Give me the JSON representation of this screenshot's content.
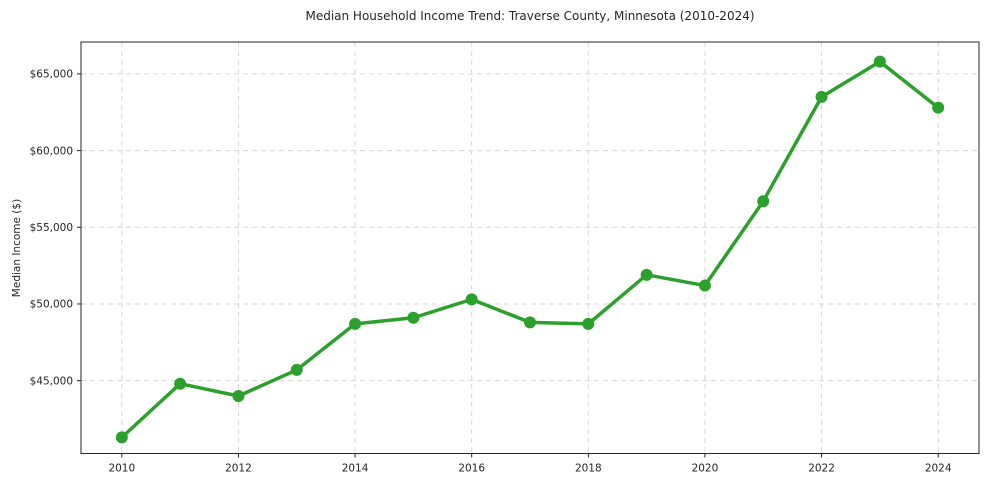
{
  "chart_data": {
    "type": "line",
    "title": "Median Household Income Trend: Traverse County, Minnesota (2010-2024)",
    "xlabel": "",
    "ylabel": "Median Income ($)",
    "x": [
      2010,
      2011,
      2012,
      2013,
      2014,
      2015,
      2016,
      2017,
      2018,
      2019,
      2020,
      2021,
      2022,
      2023,
      2024
    ],
    "values": [
      41300,
      44800,
      44000,
      45700,
      48700,
      49100,
      50300,
      48800,
      48700,
      51900,
      51200,
      56700,
      63500,
      65800,
      62800
    ],
    "series_name": "Median Household Income",
    "xticks": [
      2010,
      2012,
      2014,
      2016,
      2018,
      2020,
      2022,
      2024
    ],
    "xtick_labels": [
      "2010",
      "2012",
      "2014",
      "2016",
      "2018",
      "2020",
      "2022",
      "2024"
    ],
    "yticks": [
      45000,
      50000,
      55000,
      60000,
      65000
    ],
    "ytick_labels": [
      "$45,000",
      "$50,000",
      "$55,000",
      "$60,000",
      "$65,000"
    ],
    "xlim": [
      2009.3,
      2024.7
    ],
    "ylim": [
      40250,
      67080
    ],
    "grid": true,
    "grid_style": "dashed",
    "legend": "none",
    "colors": {
      "line": "#2ca02c",
      "marker": "#2ca02c",
      "grid": "#d8d8d8",
      "spine": "#262626",
      "text": "#262626",
      "background": "#ffffff"
    }
  }
}
